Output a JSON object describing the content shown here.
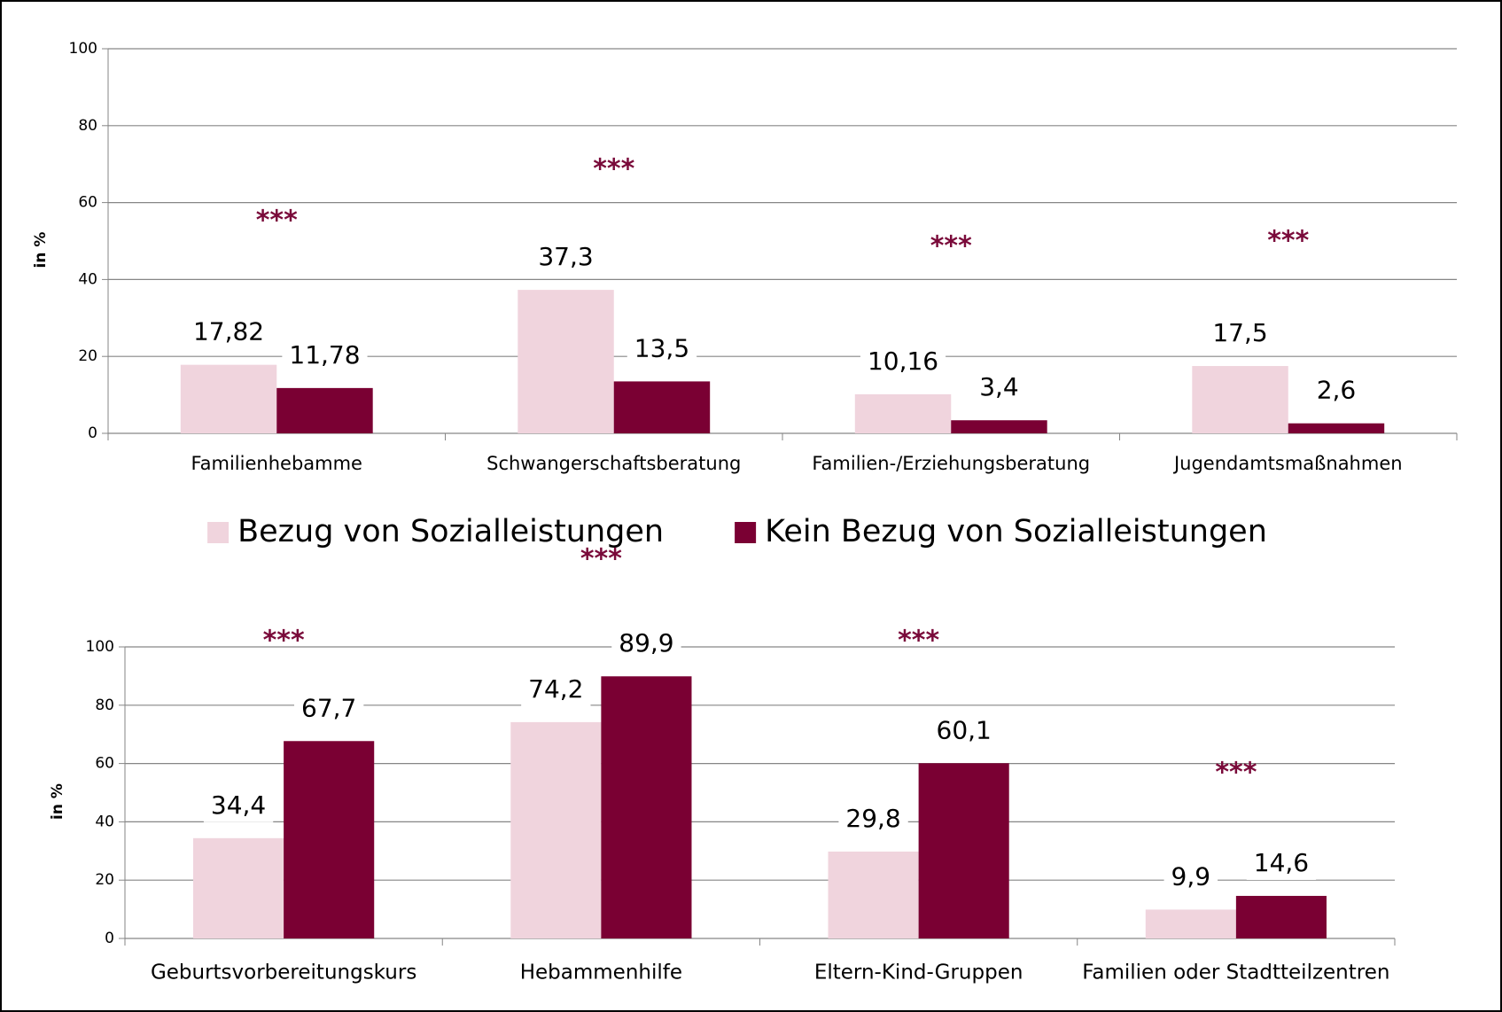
{
  "chart_data": [
    {
      "type": "bar",
      "y_label": "in %",
      "categories": [
        "Familienhebamme",
        "Schwangerschaftsberatung",
        "Familien-/Erziehungsberatung",
        "Jugendamtsmaßnahmen"
      ],
      "series": [
        {
          "name": "Bezug von Sozialleistungen",
          "color": "#f0d4dd",
          "values": [
            17.82,
            37.3,
            10.16,
            17.5
          ],
          "value_labels": [
            "17,82",
            "37,3",
            "10,16",
            "17,5"
          ]
        },
        {
          "name": "Kein Bezug von Sozialleistungen",
          "color": "#7a0033",
          "values": [
            11.78,
            13.5,
            3.4,
            2.6
          ],
          "value_labels": [
            "11,78",
            "13,5",
            "3,4",
            "2,6"
          ]
        }
      ],
      "annotations": [
        "***",
        "***",
        "***",
        "***"
      ],
      "ylim": [
        0,
        100
      ],
      "yticks": [
        0,
        20,
        40,
        60,
        80,
        100
      ],
      "grid": true,
      "legend": "bottom"
    },
    {
      "type": "bar",
      "y_label": "in %",
      "categories": [
        "Geburtsvorbereitungskurs",
        "Hebammenhilfe",
        "Eltern-Kind-Gruppen",
        "Familien oder Stadtteilzentren"
      ],
      "series": [
        {
          "color": "#f0d4dd",
          "values": [
            34.4,
            74.2,
            29.8,
            9.9
          ],
          "value_labels": [
            "34,4",
            "74,2",
            "29,8",
            "9,9"
          ]
        },
        {
          "color": "#7a0033",
          "values": [
            67.7,
            89.9,
            60.1,
            14.6
          ],
          "value_labels": [
            "67,7",
            "89,9",
            "60,1",
            "14,6"
          ]
        }
      ],
      "annotations": [
        "***",
        "***",
        "***",
        "***"
      ],
      "ylim": [
        0,
        100
      ],
      "yticks": [
        0,
        20,
        40,
        60,
        80,
        100
      ],
      "grid": true
    }
  ]
}
